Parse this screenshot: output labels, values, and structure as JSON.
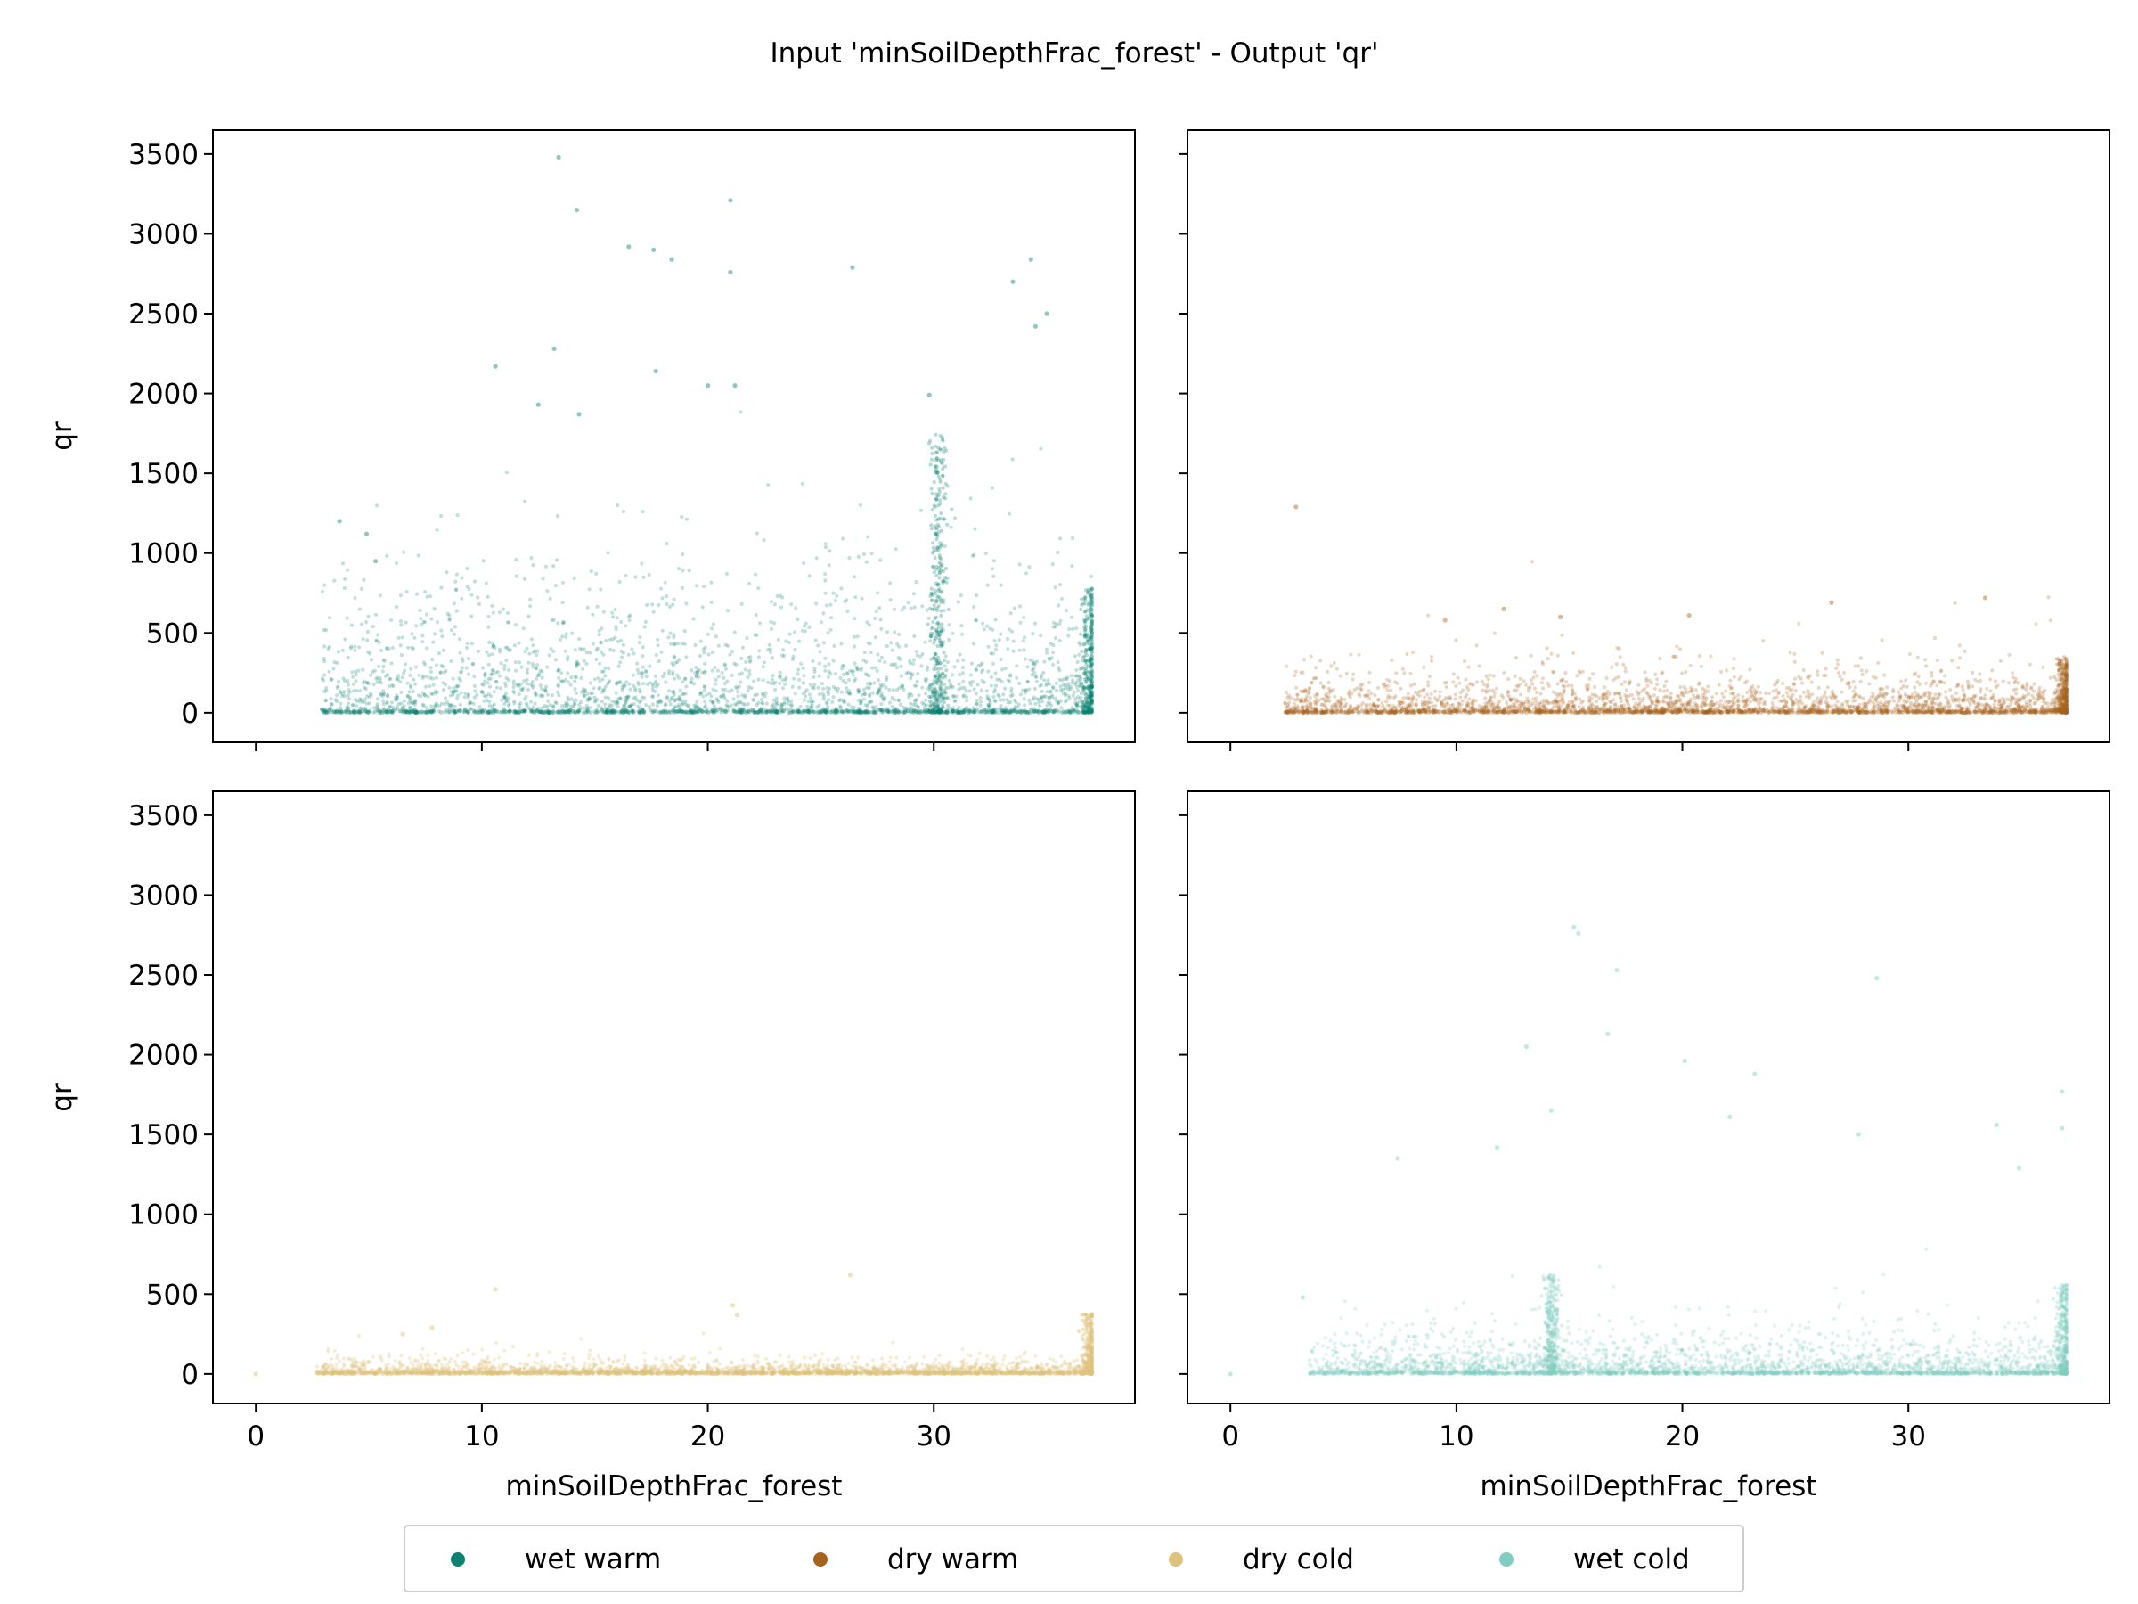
{
  "figure": {
    "title": "Input 'minSoilDepthFrac_forest' - Output 'qr'"
  },
  "chart_data": {
    "type": "scatter",
    "layout": "2x2 grid, shared x and y axes",
    "x_axis": {
      "label": "minSoilDepthFrac_forest",
      "range": [
        -1.9,
        38.9
      ],
      "ticks": [
        0,
        10,
        20,
        30
      ],
      "tick_labels": [
        "0",
        "10",
        "20",
        "30"
      ]
    },
    "y_axis": {
      "label": "qr",
      "range": [
        -185,
        3650
      ],
      "ticks": [
        0,
        500,
        1000,
        1500,
        2000,
        2500,
        3000,
        3500
      ],
      "tick_labels": [
        "0",
        "500",
        "1000",
        "1500",
        "2000",
        "2500",
        "3000",
        "3500"
      ]
    },
    "grid": false,
    "legend": {
      "placement": "bottom-center",
      "entries": [
        {
          "name": "wet warm",
          "color": "#0b8270"
        },
        {
          "name": "dry warm",
          "color": "#a7621d"
        },
        {
          "name": "dry cold",
          "color": "#dfc27d"
        },
        {
          "name": "wet cold",
          "color": "#80cdc1"
        }
      ]
    },
    "panels": [
      {
        "series": "wet warm",
        "position": "top-left",
        "color": "#0b8270",
        "opacity": 0.3,
        "x_extent": [
          2.9,
          37
        ],
        "median_qr": 280,
        "dense_columns": [
          {
            "x": 30.2,
            "max": 1750
          },
          {
            "x": 36.9,
            "max": 780
          }
        ],
        "outliers": [
          [
            13.4,
            3480
          ],
          [
            14.2,
            3150
          ],
          [
            21,
            3210
          ],
          [
            16.5,
            2920
          ],
          [
            17.6,
            2900
          ],
          [
            18.4,
            2840
          ],
          [
            21,
            2760
          ],
          [
            26.4,
            2790
          ],
          [
            34.3,
            2840
          ],
          [
            33.5,
            2700
          ],
          [
            35,
            2500
          ],
          [
            34.5,
            2420
          ],
          [
            13.2,
            2280
          ],
          [
            10.6,
            2170
          ],
          [
            17.7,
            2140
          ],
          [
            20,
            2050
          ],
          [
            21.2,
            2050
          ],
          [
            29.8,
            1990
          ],
          [
            12.5,
            1930
          ],
          [
            14.3,
            1870
          ],
          [
            4.9,
            1120
          ],
          [
            3.7,
            1200
          ],
          [
            5.3,
            950
          ]
        ]
      },
      {
        "series": "dry warm",
        "position": "top-right",
        "color": "#a7621d",
        "opacity": 0.3,
        "x_extent": [
          2.4,
          37
        ],
        "median_qr": 90,
        "dense_columns": [
          {
            "x": 36.9,
            "max": 350
          }
        ],
        "outliers": [
          [
            2.9,
            1290
          ],
          [
            33.4,
            720
          ],
          [
            26.6,
            690
          ],
          [
            12.1,
            650
          ],
          [
            20.3,
            610
          ],
          [
            14.6,
            600
          ],
          [
            9.5,
            580
          ]
        ]
      },
      {
        "series": "dry cold",
        "position": "bottom-left",
        "color": "#dfc27d",
        "opacity": 0.35,
        "x_extent": [
          2.7,
          37
        ],
        "median_qr": 30,
        "dense_columns": [
          {
            "x": 36.9,
            "max": 380
          }
        ],
        "outliers": [
          [
            0,
            0
          ],
          [
            26.3,
            620
          ],
          [
            10.6,
            530
          ],
          [
            21.1,
            430
          ],
          [
            21.3,
            370
          ],
          [
            7.8,
            290
          ],
          [
            6.5,
            250
          ]
        ]
      },
      {
        "series": "wet cold",
        "position": "bottom-right",
        "color": "#80cdc1",
        "opacity": 0.3,
        "x_extent": [
          3.5,
          37
        ],
        "median_qr": 90,
        "dense_columns": [
          {
            "x": 14.2,
            "max": 620
          },
          {
            "x": 36.9,
            "max": 560
          }
        ],
        "outliers": [
          [
            0,
            0
          ],
          [
            15.2,
            2800
          ],
          [
            15.4,
            2760
          ],
          [
            17.1,
            2530
          ],
          [
            28.6,
            2480
          ],
          [
            13.1,
            2050
          ],
          [
            16.7,
            2130
          ],
          [
            20.1,
            1960
          ],
          [
            23.2,
            1880
          ],
          [
            36.8,
            1770
          ],
          [
            14.2,
            1650
          ],
          [
            22.1,
            1610
          ],
          [
            27.8,
            1500
          ],
          [
            33.9,
            1560
          ],
          [
            34.9,
            1290
          ],
          [
            36.8,
            1540
          ],
          [
            7.4,
            1350
          ],
          [
            11.8,
            1420
          ],
          [
            3.2,
            480
          ]
        ]
      }
    ]
  }
}
